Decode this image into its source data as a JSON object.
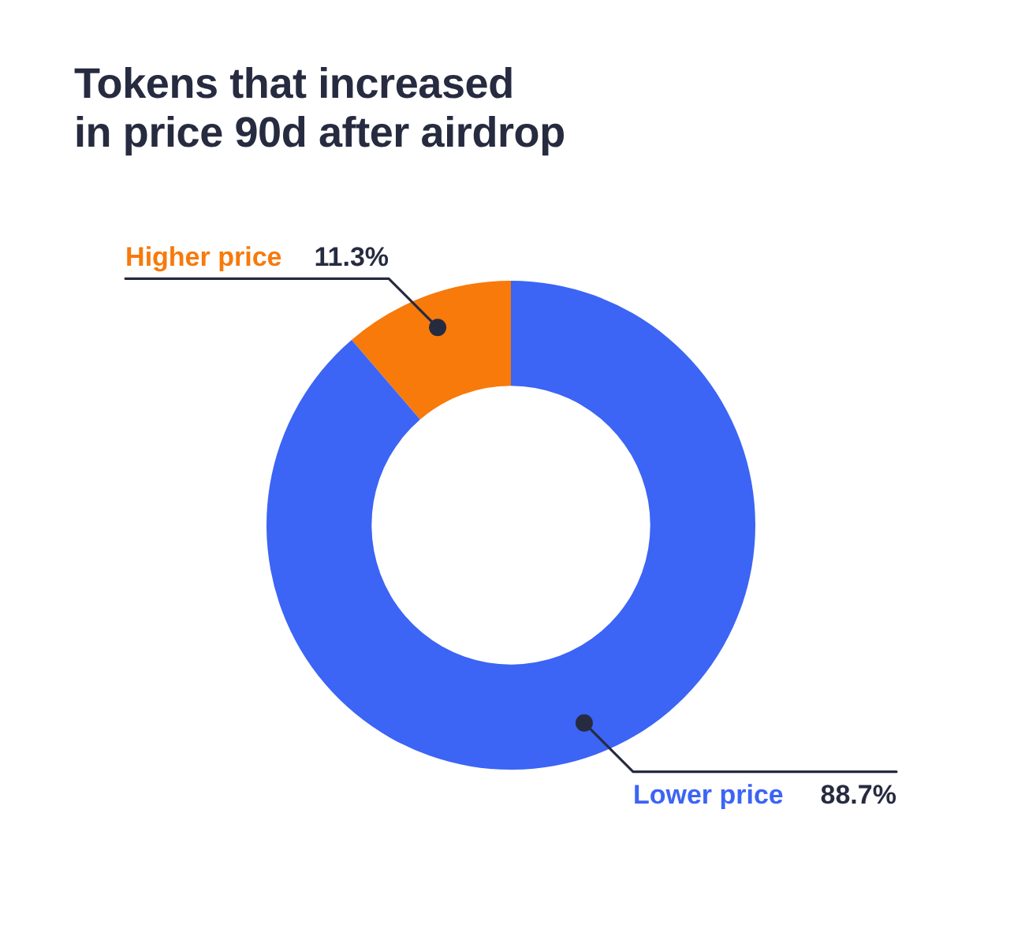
{
  "chart_data": {
    "type": "donut",
    "title": "Tokens that increased\nin price 90d after airdrop",
    "categories": [
      "Higher price",
      "Lower price"
    ],
    "values": [
      11.3,
      88.7
    ],
    "colors": [
      "#f77a0b",
      "#3c64f5"
    ],
    "value_labels": [
      "11.3%",
      "88.7%"
    ],
    "legend": false
  }
}
